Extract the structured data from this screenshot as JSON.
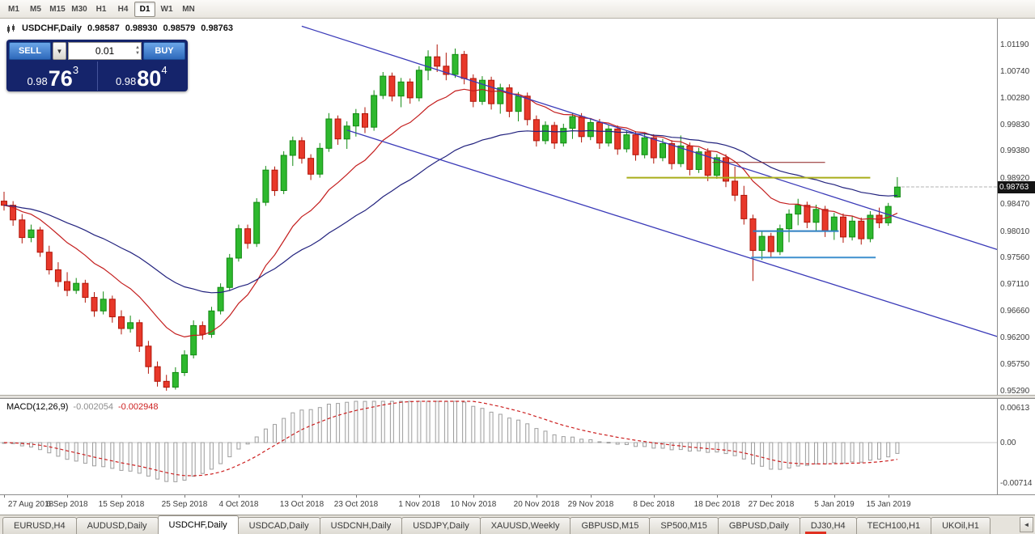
{
  "toolbar": {
    "timeframes": [
      "M1",
      "M5",
      "M15",
      "M30",
      "H1",
      "H4",
      "D1",
      "W1",
      "MN"
    ],
    "active_timeframe": "D1"
  },
  "header": {
    "symbol": "USDCHF,Daily",
    "open": "0.98587",
    "high": "0.98930",
    "low": "0.98579",
    "close": "0.98763"
  },
  "trade_panel": {
    "sell_label": "SELL",
    "buy_label": "BUY",
    "volume": "0.01",
    "dropdown_icon": "▼",
    "spinner_up_icon": "▲",
    "spinner_down_icon": "▼",
    "sell_price": {
      "prefix": "0.98",
      "big": "76",
      "sup": "3"
    },
    "buy_price": {
      "prefix": "0.98",
      "big": "80",
      "sup": "4"
    }
  },
  "price_axis": {
    "labels": [
      "1.01190",
      "1.00740",
      "1.00280",
      "0.99830",
      "0.99380",
      "0.98920",
      "0.98470",
      "0.98010",
      "0.97560",
      "0.97110",
      "0.96660",
      "0.96200",
      "0.95750",
      "0.95290"
    ],
    "current_badge": "0.98763"
  },
  "chart_data": {
    "type": "candlestick",
    "title": "USDCHF Daily",
    "candle_up_color": "#2eb82e",
    "candle_down_color": "#e8382a",
    "bid_price": 0.98763,
    "x_labels": [
      {
        "text": "27 Aug 2018",
        "i": 0
      },
      {
        "text": "6 Sep 2018",
        "i": 7
      },
      {
        "text": "15 Sep 2018",
        "i": 13
      },
      {
        "text": "25 Sep 2018",
        "i": 20
      },
      {
        "text": "4 Oct 2018",
        "i": 26
      },
      {
        "text": "13 Oct 2018",
        "i": 33
      },
      {
        "text": "23 Oct 2018",
        "i": 39
      },
      {
        "text": "1 Nov 2018",
        "i": 46
      },
      {
        "text": "10 Nov 2018",
        "i": 52
      },
      {
        "text": "20 Nov 2018",
        "i": 59
      },
      {
        "text": "29 Nov 2018",
        "i": 65
      },
      {
        "text": "8 Dec 2018",
        "i": 72
      },
      {
        "text": "18 Dec 2018",
        "i": 79
      },
      {
        "text": "27 Dec 2018",
        "i": 85
      },
      {
        "text": "5 Jan 2019",
        "i": 92
      },
      {
        "text": "15 Jan 2019",
        "i": 98
      }
    ],
    "candles": [
      [
        0.9852,
        0.9868,
        0.9836,
        0.9845
      ],
      [
        0.9845,
        0.9852,
        0.981,
        0.982
      ],
      [
        0.982,
        0.983,
        0.978,
        0.979
      ],
      [
        0.979,
        0.9812,
        0.9782,
        0.9803
      ],
      [
        0.9803,
        0.9808,
        0.9757,
        0.9765
      ],
      [
        0.9765,
        0.9776,
        0.9727,
        0.9735
      ],
      [
        0.9735,
        0.9748,
        0.9706,
        0.9715
      ],
      [
        0.9715,
        0.9731,
        0.969,
        0.97
      ],
      [
        0.97,
        0.9721,
        0.9694,
        0.9712
      ],
      [
        0.9712,
        0.9718,
        0.9679,
        0.9688
      ],
      [
        0.9688,
        0.9697,
        0.9655,
        0.9665
      ],
      [
        0.9665,
        0.9698,
        0.9659,
        0.9685
      ],
      [
        0.9685,
        0.9691,
        0.9645,
        0.9655
      ],
      [
        0.9655,
        0.9666,
        0.9625,
        0.9635
      ],
      [
        0.9635,
        0.9657,
        0.9628,
        0.9645
      ],
      [
        0.9645,
        0.965,
        0.9595,
        0.9605
      ],
      [
        0.9605,
        0.9614,
        0.9558,
        0.957
      ],
      [
        0.957,
        0.9579,
        0.9536,
        0.9545
      ],
      [
        0.9545,
        0.9556,
        0.9529,
        0.9535
      ],
      [
        0.9535,
        0.9569,
        0.9531,
        0.956
      ],
      [
        0.956,
        0.9598,
        0.9554,
        0.959
      ],
      [
        0.959,
        0.9649,
        0.9584,
        0.964
      ],
      [
        0.964,
        0.9647,
        0.9616,
        0.9625
      ],
      [
        0.9625,
        0.9672,
        0.9619,
        0.9665
      ],
      [
        0.9665,
        0.9712,
        0.9659,
        0.9705
      ],
      [
        0.9705,
        0.9762,
        0.9699,
        0.9755
      ],
      [
        0.9755,
        0.9812,
        0.9749,
        0.9805
      ],
      [
        0.9805,
        0.9812,
        0.9771,
        0.978
      ],
      [
        0.978,
        0.9857,
        0.9774,
        0.985
      ],
      [
        0.985,
        0.9912,
        0.9844,
        0.9905
      ],
      [
        0.9905,
        0.9911,
        0.9861,
        0.987
      ],
      [
        0.987,
        0.9937,
        0.9864,
        0.993
      ],
      [
        0.993,
        0.9962,
        0.9912,
        0.9955
      ],
      [
        0.9955,
        0.9961,
        0.9916,
        0.9925
      ],
      [
        0.9925,
        0.9932,
        0.9888,
        0.9898
      ],
      [
        0.9898,
        0.9951,
        0.9892,
        0.9942
      ],
      [
        0.9942,
        1.0002,
        0.9936,
        0.9992
      ],
      [
        0.9992,
        0.9998,
        0.9948,
        0.9958
      ],
      [
        0.9958,
        0.9988,
        0.9941,
        0.998
      ],
      [
        0.998,
        1.0009,
        0.9962,
        1.0001
      ],
      [
        1.0001,
        1.0012,
        0.9968,
        0.9978
      ],
      [
        0.9978,
        1.0041,
        0.9972,
        1.0032
      ],
      [
        1.0032,
        1.0072,
        1.0026,
        1.0065
      ],
      [
        1.0065,
        1.0071,
        1.0022,
        1.0031
      ],
      [
        1.0031,
        1.0062,
        1.0012,
        1.0055
      ],
      [
        1.0055,
        1.0061,
        1.0018,
        1.0028
      ],
      [
        1.0028,
        1.0082,
        1.0022,
        1.0075
      ],
      [
        1.0075,
        1.0109,
        1.0058,
        1.0098
      ],
      [
        1.0098,
        1.0119,
        1.0072,
        1.0082
      ],
      [
        1.0082,
        1.0105,
        1.0058,
        1.0068
      ],
      [
        1.0068,
        1.0112,
        1.0062,
        1.0102
      ],
      [
        1.0102,
        1.0108,
        1.0051,
        1.0061
      ],
      [
        1.0061,
        1.0068,
        1.0012,
        1.0022
      ],
      [
        1.0022,
        1.0065,
        1.0016,
        1.0058
      ],
      [
        1.0058,
        1.0064,
        1.0008,
        1.0018
      ],
      [
        1.0018,
        1.0052,
        1.0001,
        1.0045
      ],
      [
        1.0045,
        1.0051,
        0.9995,
        1.0005
      ],
      [
        1.0005,
        1.0038,
        0.9988,
        1.0031
      ],
      [
        1.0031,
        1.0037,
        0.9981,
        0.9991
      ],
      [
        0.9991,
        0.9998,
        0.9945,
        0.9955
      ],
      [
        0.9955,
        0.9988,
        0.9949,
        0.9981
      ],
      [
        0.9981,
        0.9987,
        0.9941,
        0.9951
      ],
      [
        0.9951,
        0.9984,
        0.9945,
        0.9976
      ],
      [
        0.9976,
        1.0002,
        0.9958,
        0.9996
      ],
      [
        0.9996,
        1.0002,
        0.9952,
        0.9962
      ],
      [
        0.9962,
        0.9993,
        0.9956,
        0.9986
      ],
      [
        0.9986,
        0.9992,
        0.9941,
        0.9951
      ],
      [
        0.9951,
        0.9982,
        0.9945,
        0.9975
      ],
      [
        0.9975,
        0.9981,
        0.9931,
        0.9941
      ],
      [
        0.9941,
        0.9972,
        0.9935,
        0.9965
      ],
      [
        0.9965,
        0.9971,
        0.9921,
        0.9931
      ],
      [
        0.9931,
        0.9968,
        0.9925,
        0.996
      ],
      [
        0.996,
        0.9966,
        0.9916,
        0.9926
      ],
      [
        0.9926,
        0.9958,
        0.992,
        0.995
      ],
      [
        0.995,
        0.9956,
        0.9906,
        0.9916
      ],
      [
        0.9916,
        0.9964,
        0.991,
        0.9946
      ],
      [
        0.9946,
        0.9952,
        0.9896,
        0.9906
      ],
      [
        0.9906,
        0.9943,
        0.99,
        0.9936
      ],
      [
        0.9936,
        0.9942,
        0.9886,
        0.9896
      ],
      [
        0.9896,
        0.9932,
        0.989,
        0.9926
      ],
      [
        0.9926,
        0.9932,
        0.9876,
        0.9886
      ],
      [
        0.9886,
        0.9911,
        0.9852,
        0.9862
      ],
      [
        0.9862,
        0.9878,
        0.9812,
        0.9822
      ],
      [
        0.9822,
        0.9829,
        0.9716,
        0.9768
      ],
      [
        0.9768,
        0.9801,
        0.9752,
        0.9792
      ],
      [
        0.9792,
        0.9798,
        0.9756,
        0.9766
      ],
      [
        0.9766,
        0.9812,
        0.976,
        0.9805
      ],
      [
        0.9805,
        0.9838,
        0.9782,
        0.983
      ],
      [
        0.983,
        0.9856,
        0.9811,
        0.9845
      ],
      [
        0.9845,
        0.9851,
        0.9806,
        0.9816
      ],
      [
        0.9816,
        0.9846,
        0.9801,
        0.9838
      ],
      [
        0.9838,
        0.9844,
        0.9791,
        0.9801
      ],
      [
        0.9801,
        0.9832,
        0.9786,
        0.9825
      ],
      [
        0.9825,
        0.9831,
        0.9781,
        0.9791
      ],
      [
        0.9791,
        0.9826,
        0.9785,
        0.9818
      ],
      [
        0.9818,
        0.9824,
        0.9778,
        0.9788
      ],
      [
        0.9788,
        0.9835,
        0.9782,
        0.9828
      ],
      [
        0.9828,
        0.9841,
        0.9806,
        0.9815
      ],
      [
        0.9815,
        0.9849,
        0.981,
        0.9843
      ],
      [
        0.9859,
        0.9893,
        0.9858,
        0.9876
      ]
    ],
    "moving_averages": [
      {
        "period": 13,
        "color": "#c41e1e"
      },
      {
        "period": 34,
        "color": "#22227e"
      }
    ],
    "trendlines": [
      {
        "i1": 33,
        "p1": 1.015,
        "i2": 112,
        "p2": 0.976,
        "color": "#3a3ab8"
      },
      {
        "i1": 38,
        "p1": 0.9973,
        "i2": 112,
        "p2": 0.9612,
        "color": "#3a3ab8"
      }
    ],
    "hlines": [
      {
        "p": 0.9918,
        "i1": 78.5,
        "i2": 91.0,
        "color": "#8b1e1e",
        "w": 1
      },
      {
        "p": 0.9892,
        "i1": 69.0,
        "i2": 96.0,
        "color": "#a9ad19",
        "w": 2
      },
      {
        "p": 0.9801,
        "i1": 83.0,
        "i2": 92.5,
        "color": "#2e7fc2",
        "w": 2
      },
      {
        "p": 0.9756,
        "i1": 82.8,
        "i2": 96.6,
        "color": "#3e90ce",
        "w": 2
      }
    ]
  },
  "macd": {
    "name": "MACD(12,26,9)",
    "value": "-0.002054",
    "signal_value": "-0.002948",
    "axis_labels": [
      "0.00613",
      "0.00",
      "-0.00714"
    ],
    "params": {
      "fast": 12,
      "slow": 26,
      "signal": 9
    },
    "histogram_color": "#9e9e9e",
    "signal_color": "#cc1f1f"
  },
  "tabs": [
    {
      "label": "EURUSD,H4"
    },
    {
      "label": "AUDUSD,Daily"
    },
    {
      "label": "USDCHF,Daily",
      "active": true
    },
    {
      "label": "USDCAD,Daily"
    },
    {
      "label": "USDCNH,Daily"
    },
    {
      "label": "USDJPY,Daily"
    },
    {
      "label": "XAUUSD,Weekly"
    },
    {
      "label": "GBPUSD,M15"
    },
    {
      "label": "SP500,M15"
    },
    {
      "label": "GBPUSD,Daily"
    },
    {
      "label": "DJ30,H4",
      "alert": true
    },
    {
      "label": "TECH100,H1"
    },
    {
      "label": "UKOil,H1"
    }
  ],
  "tab_scroll": {
    "left_icon": "◄"
  }
}
